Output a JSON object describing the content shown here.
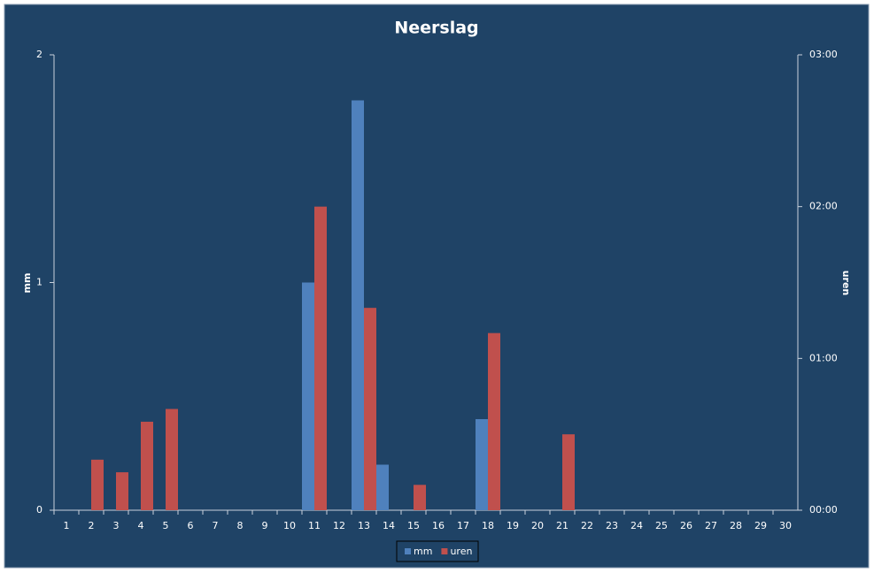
{
  "chart_data": {
    "type": "bar",
    "title": "Neerslag",
    "categories": [
      "1",
      "2",
      "3",
      "4",
      "5",
      "6",
      "7",
      "8",
      "9",
      "10",
      "11",
      "12",
      "13",
      "14",
      "15",
      "16",
      "17",
      "18",
      "19",
      "20",
      "21",
      "22",
      "23",
      "24",
      "25",
      "26",
      "27",
      "28",
      "29",
      "30"
    ],
    "series": [
      {
        "name": "mm",
        "color": "#4f81bd",
        "values": [
          0,
          0,
          0,
          0,
          0,
          0,
          0,
          0,
          0,
          0,
          1.0,
          0,
          1.8,
          0.2,
          0,
          0,
          0,
          0.4,
          0,
          0,
          0,
          0,
          0,
          0,
          0,
          0,
          0,
          0,
          0,
          0
        ]
      },
      {
        "name": "uren",
        "color": "#c0504d",
        "axis": "y2",
        "values": [
          0,
          0.333,
          0.25,
          0.583,
          0.667,
          0,
          0,
          0,
          0,
          0,
          2.0,
          0,
          1.333,
          0,
          0.167,
          0,
          0,
          1.167,
          0,
          0,
          0.5,
          0,
          0,
          0,
          0,
          0,
          0,
          0,
          0,
          0
        ]
      }
    ],
    "ylabel": "mm",
    "y2label": "uren",
    "ylim": [
      0,
      2
    ],
    "yticks": [
      0,
      1,
      2
    ],
    "y2lim": [
      0,
      3
    ],
    "y2ticks": [
      {
        "value": 0,
        "label": "00:00"
      },
      {
        "value": 1,
        "label": "01:00"
      },
      {
        "value": 2,
        "label": "02:00"
      },
      {
        "value": 3,
        "label": "03:00"
      }
    ],
    "legend": "bottom"
  }
}
